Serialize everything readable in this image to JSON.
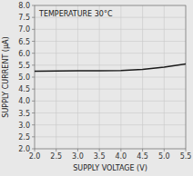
{
  "chart_data": {
    "type": "line",
    "annotation": "TEMPERATURE 30°C",
    "xlabel": "SUPPLY VOLTAGE (V)",
    "ylabel": "SUPPLY CURRENT (μA)",
    "x": [
      2.0,
      2.5,
      3.0,
      3.5,
      4.0,
      4.5,
      5.0,
      5.5
    ],
    "values": [
      5.25,
      5.26,
      5.27,
      5.27,
      5.28,
      5.32,
      5.42,
      5.55
    ],
    "color": "#1a1a1a",
    "xlim": [
      2.0,
      5.5
    ],
    "ylim": [
      2.0,
      8.0
    ],
    "xticks": [
      {
        "value": 2.0,
        "label": "2.0"
      },
      2.5,
      {
        "value": 3.0,
        "label": "3.0"
      },
      3.5,
      {
        "value": 4.0,
        "label": "4.0"
      },
      4.5,
      {
        "value": 5.0,
        "label": "5.0"
      },
      5.5
    ],
    "yticks": [
      {
        "value": 2.0,
        "label": "2.0"
      },
      2.5,
      {
        "value": 3.0,
        "label": "3.0"
      },
      3.5,
      {
        "value": 4.0,
        "label": "4.0"
      },
      4.5,
      {
        "value": 5.0,
        "label": "5.0"
      },
      5.5,
      {
        "value": 6.0,
        "label": "6.0"
      },
      6.5,
      {
        "value": 7.0,
        "label": "7.0"
      },
      7.5,
      {
        "value": 8.0,
        "label": "8.0"
      }
    ],
    "grid": true
  }
}
